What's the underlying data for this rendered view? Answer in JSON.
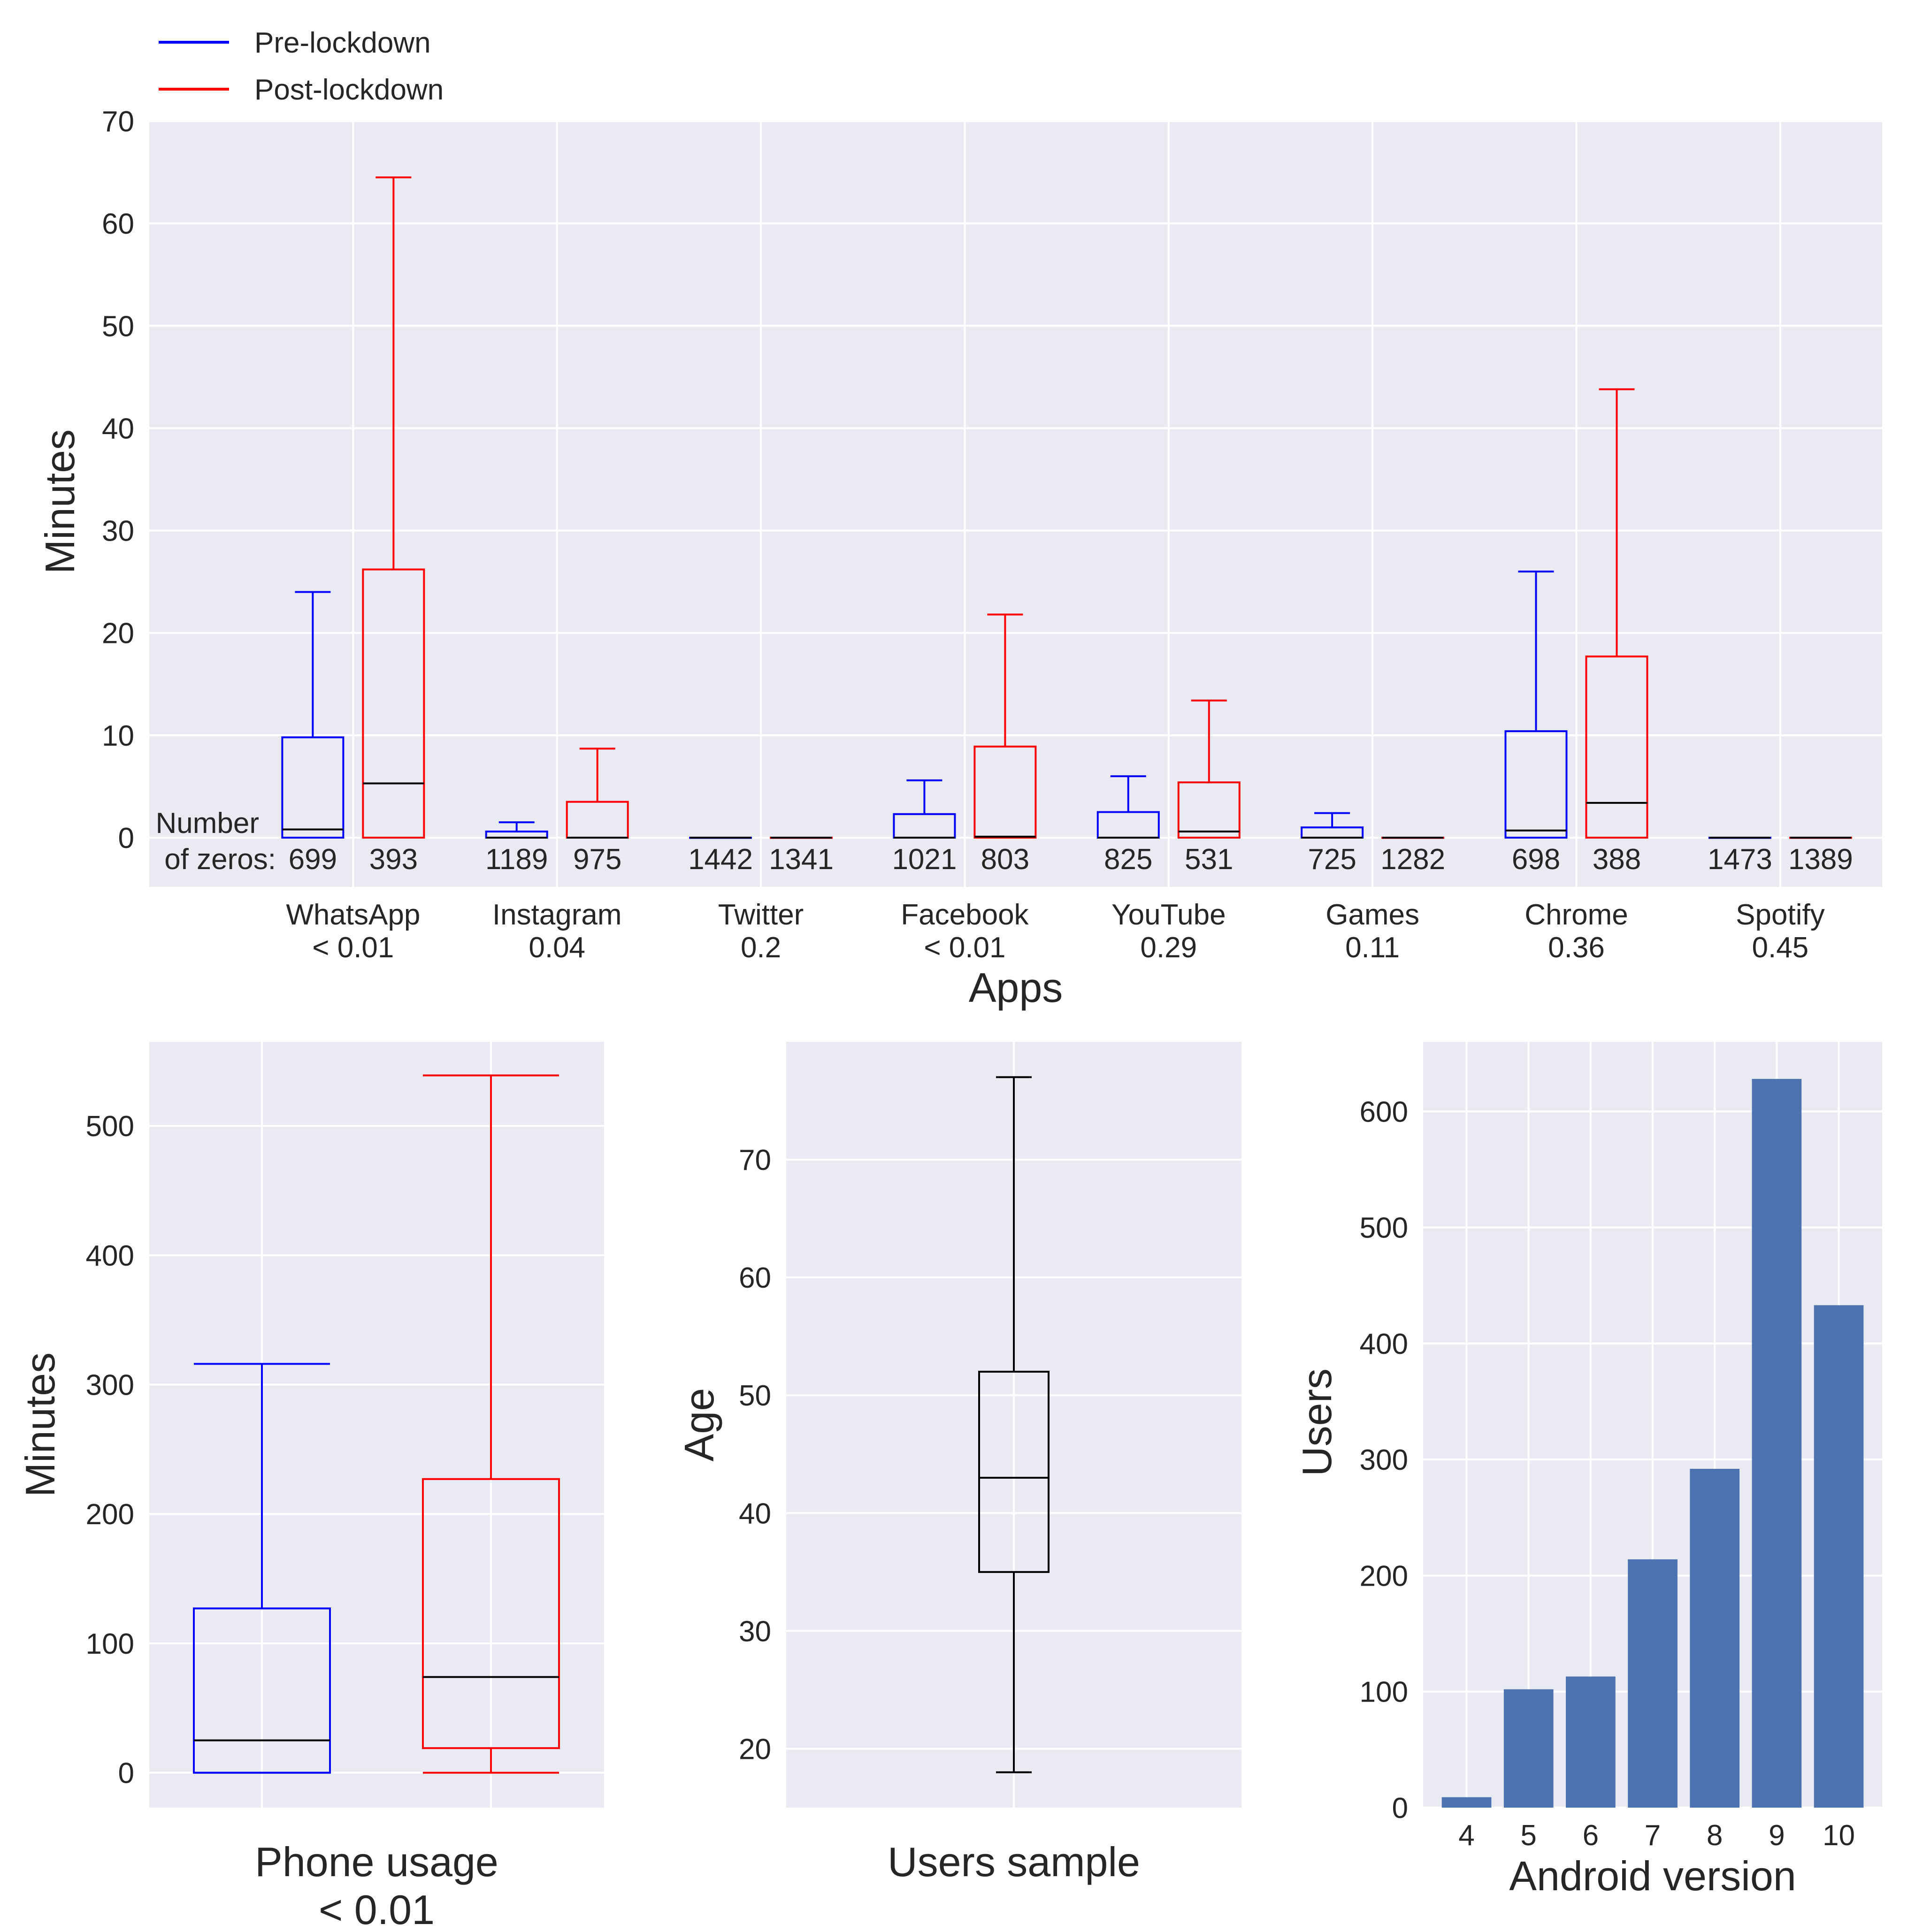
{
  "colors": {
    "pre": "#0000ff",
    "post": "#ff0000",
    "median": "#000000",
    "black": "#000000",
    "bar": "#4c72b0",
    "panel_bg": "#eaeaf2",
    "grid": "#ffffff"
  },
  "chart_data": [
    {
      "type": "boxplot",
      "title": "",
      "xlabel": "Apps",
      "ylabel": "Minutes",
      "ylim": [
        -5,
        70
      ],
      "yticks": [
        0,
        10,
        20,
        30,
        40,
        50,
        60,
        70
      ],
      "legend": {
        "placement": "top-left, outside",
        "entries": [
          {
            "label": "Pre-lockdown",
            "color": "#0000ff"
          },
          {
            "label": "Post-lockdown",
            "color": "#ff0000"
          }
        ]
      },
      "zeros_label_line1": "Number",
      "zeros_label_line2": "of zeros:",
      "categories": [
        {
          "name": "WhatsApp",
          "pvalue": "< 0.01",
          "pre": {
            "min": 0,
            "q1": 0,
            "median": 0.8,
            "q3": 9.8,
            "max": 24,
            "zeros": "699"
          },
          "post": {
            "min": 0,
            "q1": 0,
            "median": 5.3,
            "q3": 26.2,
            "max": 64.5,
            "zeros": "393"
          }
        },
        {
          "name": "Instagram",
          "pvalue": "0.04",
          "pre": {
            "min": 0,
            "q1": 0,
            "median": 0,
            "q3": 0.6,
            "max": 1.5,
            "zeros": "1189"
          },
          "post": {
            "min": 0,
            "q1": 0,
            "median": 0,
            "q3": 3.5,
            "max": 8.7,
            "zeros": "975"
          }
        },
        {
          "name": "Twitter",
          "pvalue": "0.2",
          "pre": {
            "min": 0,
            "q1": 0,
            "median": 0,
            "q3": 0,
            "max": 0,
            "zeros": "1442"
          },
          "post": {
            "min": 0,
            "q1": 0,
            "median": 0,
            "q3": 0,
            "max": 0,
            "zeros": "1341"
          }
        },
        {
          "name": "Facebook",
          "pvalue": "< 0.01",
          "pre": {
            "min": 0,
            "q1": 0,
            "median": 0,
            "q3": 2.3,
            "max": 5.6,
            "zeros": "1021"
          },
          "post": {
            "min": 0,
            "q1": 0,
            "median": 0.1,
            "q3": 8.9,
            "max": 21.8,
            "zeros": "803"
          }
        },
        {
          "name": "YouTube",
          "pvalue": "0.29",
          "pre": {
            "min": 0,
            "q1": 0,
            "median": 0,
            "q3": 2.5,
            "max": 6.0,
            "zeros": "825"
          },
          "post": {
            "min": 0,
            "q1": 0,
            "median": 0.6,
            "q3": 5.4,
            "max": 13.4,
            "zeros": "531"
          }
        },
        {
          "name": "Games",
          "pvalue": "0.11",
          "pre": {
            "min": 0,
            "q1": 0,
            "median": 0,
            "q3": 1.0,
            "max": 2.4,
            "zeros": "725"
          },
          "post": {
            "min": 0,
            "q1": 0,
            "median": 0,
            "q3": 0,
            "max": 0,
            "zeros": "1282"
          }
        },
        {
          "name": "Chrome",
          "pvalue": "0.36",
          "pre": {
            "min": 0,
            "q1": 0,
            "median": 0.7,
            "q3": 10.4,
            "max": 26,
            "zeros": "698"
          },
          "post": {
            "min": 0,
            "q1": 0,
            "median": 3.4,
            "q3": 17.7,
            "max": 43.8,
            "zeros": "388"
          }
        },
        {
          "name": "Spotify",
          "pvalue": "0.45",
          "pre": {
            "min": 0,
            "q1": 0,
            "median": 0,
            "q3": 0,
            "max": 0,
            "zeros": "1473"
          },
          "post": {
            "min": 0,
            "q1": 0,
            "median": 0,
            "q3": 0,
            "max": 0,
            "zeros": "1389"
          }
        }
      ]
    },
    {
      "type": "boxplot",
      "title": "",
      "xlabel_line1": "Phone usage",
      "xlabel_line2": "< 0.01",
      "ylabel": "Minutes",
      "ylim": [
        -27,
        565
      ],
      "yticks": [
        0,
        100,
        200,
        300,
        400,
        500
      ],
      "boxes": [
        {
          "series": "Pre-lockdown",
          "min": 0,
          "q1": 0,
          "median": 25,
          "q3": 127,
          "max": 316
        },
        {
          "series": "Post-lockdown",
          "min": 0,
          "q1": 19,
          "median": 74,
          "q3": 227,
          "max": 539
        }
      ]
    },
    {
      "type": "boxplot",
      "title": "",
      "xlabel": "Users sample",
      "ylabel": "Age",
      "ylim": [
        15,
        80
      ],
      "yticks": [
        20,
        30,
        40,
        50,
        60,
        70
      ],
      "box": {
        "min": 18,
        "q1": 35,
        "median": 43,
        "q3": 52,
        "max": 77
      }
    },
    {
      "type": "bar",
      "title": "",
      "xlabel": "Android version",
      "ylabel": "Users",
      "ylim": [
        0,
        660
      ],
      "yticks": [
        0,
        100,
        200,
        300,
        400,
        500,
        600
      ],
      "categories": [
        "4",
        "5",
        "6",
        "7",
        "8",
        "9",
        "10"
      ],
      "values": [
        9,
        102,
        113,
        214,
        292,
        628,
        433
      ]
    }
  ]
}
